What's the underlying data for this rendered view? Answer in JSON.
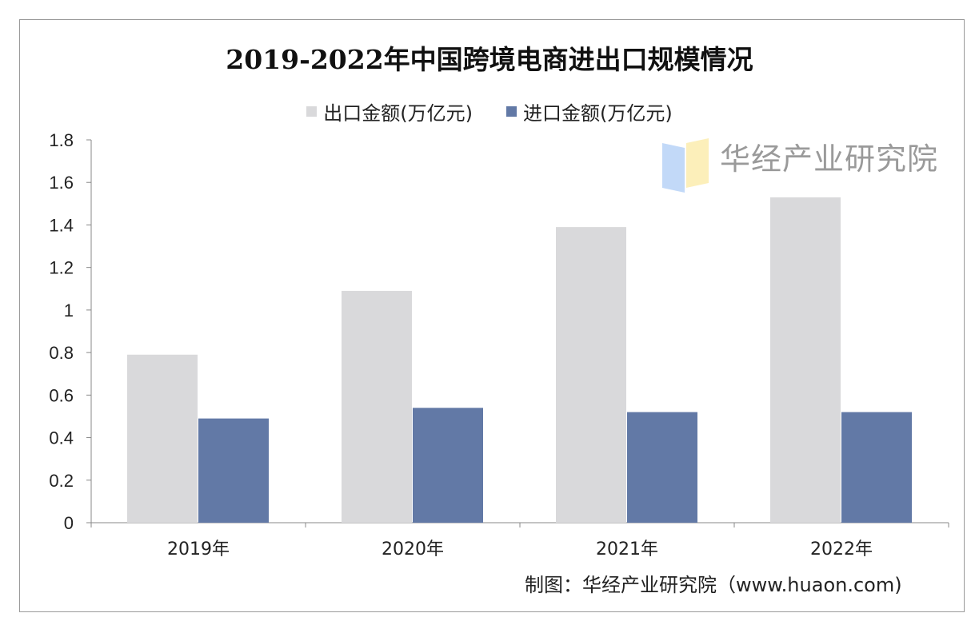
{
  "chart_data": {
    "type": "bar",
    "title": "2019-2022年中国跨境电商进出口规模情况",
    "categories": [
      "2019年",
      "2020年",
      "2021年",
      "2022年"
    ],
    "series": [
      {
        "name": "出口金额(万亿元)",
        "values": [
          0.79,
          1.09,
          1.39,
          1.53
        ],
        "color": "#d9d9db"
      },
      {
        "name": "进口金额(万亿元)",
        "values": [
          0.49,
          0.54,
          0.52,
          0.52
        ],
        "color": "#6279a6"
      }
    ],
    "ylim": [
      0,
      1.8
    ],
    "yticks": [
      "0",
      "0.2",
      "0.4",
      "0.6",
      "0.8",
      "1",
      "1.2",
      "1.4",
      "1.6",
      "1.8"
    ],
    "grid": false,
    "legend": "top-center"
  },
  "source": "制图：华经产业研究院（www.huaon.com)",
  "watermark": "华经产业研究院"
}
